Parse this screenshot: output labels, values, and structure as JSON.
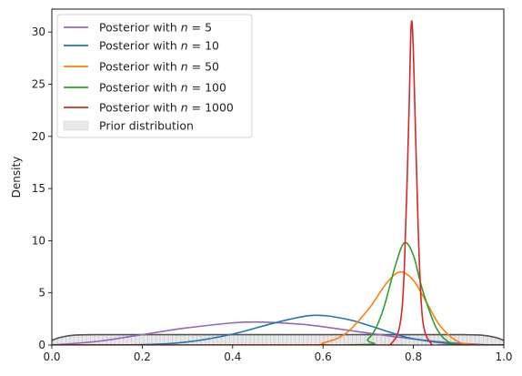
{
  "chart_data": {
    "type": "line",
    "title": "",
    "xlabel": "",
    "ylabel": "Density",
    "xlim": [
      0.0,
      1.0
    ],
    "ylim": [
      0,
      32.2
    ],
    "xticks": [
      "0.0",
      "0.2",
      "0.4",
      "0.6",
      "0.8",
      "1.0"
    ],
    "yticks": [
      "0",
      "5",
      "10",
      "15",
      "20",
      "25",
      "30"
    ],
    "grid": false,
    "legend_position": "top-left",
    "series": [
      {
        "name": "Posterior with n = 5",
        "color": "#9467bd",
        "x": [
          0.0,
          0.1,
          0.2,
          0.3,
          0.43,
          0.55,
          0.65,
          0.75,
          0.85,
          0.95,
          1.0
        ],
        "y": [
          0.0,
          0.35,
          1.0,
          1.65,
          2.2,
          2.0,
          1.45,
          0.85,
          0.35,
          0.05,
          0.0
        ]
      },
      {
        "name": "Posterior with n = 10",
        "color": "#1f77b4",
        "x": [
          0.0,
          0.2,
          0.3,
          0.4,
          0.5,
          0.58,
          0.65,
          0.7,
          0.75,
          0.8,
          0.9,
          1.0
        ],
        "y": [
          0.0,
          0.04,
          0.3,
          1.05,
          2.2,
          2.85,
          2.5,
          1.9,
          1.2,
          0.6,
          0.06,
          0.0
        ]
      },
      {
        "name": "Posterior with n = 50",
        "color": "#ff7f0e",
        "x": [
          0.0,
          0.55,
          0.6,
          0.65,
          0.7,
          0.74,
          0.77,
          0.8,
          0.83,
          0.86,
          0.9,
          0.95,
          1.0
        ],
        "y": [
          0.0,
          0.0,
          0.2,
          1.1,
          3.4,
          5.9,
          7.0,
          6.2,
          4.0,
          1.8,
          0.3,
          0.0,
          0.0
        ]
      },
      {
        "name": "Posterior with n = 100",
        "color": "#2ca02c",
        "x": [
          0.0,
          0.65,
          0.7,
          0.73,
          0.76,
          0.78,
          0.8,
          0.82,
          0.85,
          0.88,
          0.92,
          1.0
        ],
        "y": [
          0.0,
          0.0,
          0.6,
          3.0,
          7.6,
          9.8,
          8.6,
          5.3,
          1.7,
          0.25,
          0.0,
          0.0
        ]
      },
      {
        "name": "Posterior with n = 1000",
        "color": "#d62728",
        "x": [
          0.0,
          0.73,
          0.75,
          0.77,
          0.78,
          0.79,
          0.795,
          0.8,
          0.81,
          0.82,
          0.84,
          0.86,
          1.0
        ],
        "y": [
          0.0,
          0.0,
          0.1,
          1.9,
          7.5,
          22.0,
          30.6,
          28.0,
          12.0,
          2.6,
          0.1,
          0.0,
          0.0
        ]
      }
    ],
    "prior": {
      "name": "Prior distribution",
      "fill_color": "#e8e8e8",
      "line_color": "#555555",
      "x": [
        0.0,
        0.02,
        0.05,
        0.1,
        0.3,
        0.5,
        0.7,
        0.9,
        0.95,
        0.98,
        1.0
      ],
      "y": [
        0.45,
        0.75,
        0.95,
        1.0,
        1.0,
        1.0,
        1.0,
        1.0,
        0.95,
        0.75,
        0.45
      ]
    }
  }
}
